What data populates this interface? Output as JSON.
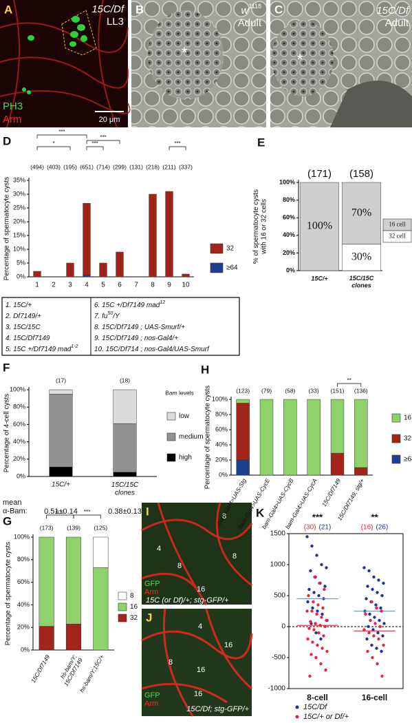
{
  "images": {
    "A": {
      "panel": "A",
      "genotype": "15C/Df",
      "stage": "LL3",
      "stain1": "PH3",
      "stain2": "Arm",
      "scale": "20 μm"
    },
    "B": {
      "panel": "B",
      "genotype": "w",
      "sup": "1118",
      "stage": "Adult",
      "mark": "*"
    },
    "C": {
      "panel": "C",
      "genotype": "15C/Df",
      "stage": "Adult",
      "mark": "*"
    },
    "I": {
      "panel": "I",
      "cells": [
        "8",
        "4",
        "8",
        "16",
        "8"
      ],
      "stain1": "GFP",
      "stain2": "Arm",
      "genotype": "15C (or Df)/+; stg-GFP/+"
    },
    "J": {
      "panel": "J",
      "cells": [
        "4",
        "16",
        "8",
        "16",
        "16"
      ],
      "stain1": "GFP",
      "stain2": "Arm",
      "genotype": "15C/Df; stg-GFP/+"
    }
  },
  "genotype_table": {
    "entries": [
      {
        "text": "1. 15C/+"
      },
      {
        "text": "2. Df7149/+"
      },
      {
        "text": "3. 15C/15C"
      },
      {
        "text": "4. 15C/Df7149"
      },
      {
        "text": "5. 15C +/Df7149 mad",
        "sup": "1-2"
      },
      {
        "text": "6. 15C +/Df7149 mad",
        "sup": "12"
      },
      {
        "text": "7. fu",
        "sup": "50",
        "tail": "/Y"
      },
      {
        "text": "8. 15C/Df7149 ; UAS-Smurf/+"
      },
      {
        "text": "9. 15C/Df7149 ; nos-Gal4/+"
      },
      {
        "text": "10. 15C/Df714 ; nos-Gal4/UAS-Smurf"
      }
    ]
  },
  "chart_data": [
    {
      "panel": "D",
      "type": "bar",
      "stacked": true,
      "ylabel": "Percentage of spermatocyte cysts",
      "categories": [
        "1",
        "2",
        "3",
        "4",
        "5",
        "6",
        "7",
        "8",
        "9",
        "10"
      ],
      "series": [
        {
          "name": "≥64",
          "color": "#1f3f8f",
          "values": [
            0,
            0,
            0,
            0.7,
            0,
            0,
            0,
            0,
            0,
            0
          ]
        },
        {
          "name": "32",
          "color": "#a3241b",
          "values": [
            2,
            0,
            5,
            26,
            5,
            9,
            0,
            30,
            31,
            1
          ]
        }
      ],
      "counts": [
        "(494)",
        "(403)",
        "(195)",
        "(651)",
        "(714)",
        "(299)",
        "(131)",
        "(218)",
        "(211)",
        "(337)"
      ],
      "ylim": [
        0,
        35
      ],
      "yticks": [
        {
          "value": 0,
          "label": "0%"
        },
        {
          "value": 5,
          "label": "5%"
        },
        {
          "value": 10,
          "label": "10%"
        },
        {
          "value": 15,
          "label": "15%"
        },
        {
          "value": 20,
          "label": "20%"
        },
        {
          "value": 25,
          "label": "25%"
        },
        {
          "value": 30,
          "label": "30%"
        },
        {
          "value": 35,
          "label": "35%"
        }
      ],
      "brackets": [
        {
          "label": "***",
          "between": [
            "1",
            "4"
          ]
        },
        {
          "label": "***",
          "between": [
            "4",
            "6"
          ]
        },
        {
          "label": "*",
          "between": [
            "1",
            "3"
          ]
        },
        {
          "label": "***",
          "between": [
            "4",
            "5"
          ]
        },
        {
          "label": "***",
          "between": [
            "9",
            "10"
          ]
        }
      ]
    },
    {
      "panel": "E",
      "type": "bar",
      "stacked": true,
      "ylabel": "% of spermatocyte cysts\nwith 16 or 32 cells",
      "categories": [
        "15C/+",
        "15C/15C\nclones"
      ],
      "series": [
        {
          "name": "32 cell",
          "color": "#ffffff",
          "values": [
            0,
            30
          ],
          "value_labels": [
            null,
            "30%"
          ]
        },
        {
          "name": "16 cell",
          "color": "#cfcfcf",
          "values": [
            100,
            70
          ],
          "value_labels": [
            "100%",
            "70%"
          ]
        }
      ],
      "counts": [
        "(171)",
        "(158)"
      ],
      "ylim": [
        0,
        100
      ],
      "yticks": [
        {
          "value": 0,
          "label": "0%"
        },
        {
          "value": 20,
          "label": "20%"
        },
        {
          "value": 40,
          "label": "40%"
        },
        {
          "value": 60,
          "label": "60%"
        },
        {
          "value": 80,
          "label": "80%"
        },
        {
          "value": 100,
          "label": "100%"
        }
      ]
    },
    {
      "panel": "F",
      "type": "bar",
      "stacked": true,
      "ylabel": "Percentage of 4-cell cysts",
      "categories": [
        "15C/+",
        "15C/15C\nclones"
      ],
      "series": [
        {
          "name": "high",
          "color": "#000000",
          "values": [
            11,
            5
          ]
        },
        {
          "name": "medium",
          "color": "#929292",
          "values": [
            84,
            56
          ]
        },
        {
          "name": "low",
          "color": "#dcdcdc",
          "values": [
            5,
            39
          ]
        }
      ],
      "legend_title": "Bam levels",
      "counts": [
        "(17)",
        "(18)"
      ],
      "mean_label": "mean\nα-Bam:",
      "means": [
        "0.51±0.14",
        "0.38±0.13"
      ],
      "ylim": [
        0,
        100
      ],
      "yticks": [
        {
          "value": 0,
          "label": "0%"
        },
        {
          "value": 20,
          "label": "20%"
        },
        {
          "value": 40,
          "label": "40%"
        },
        {
          "value": 60,
          "label": "60%"
        },
        {
          "value": 80,
          "label": "80%"
        },
        {
          "value": 100,
          "label": "100%"
        }
      ]
    },
    {
      "panel": "G",
      "type": "bar",
      "stacked": true,
      "ylabel": "Percentage of spermatocyte cysts",
      "categories": [
        "15C/Df7149",
        "hs-bam/Y;\n15C/Df7149",
        "hs-bam/Y;15C/+"
      ],
      "series": [
        {
          "name": "32",
          "color": "#a3241b",
          "values": [
            21,
            23,
            0
          ]
        },
        {
          "name": "16",
          "color": "#8fd16a",
          "values": [
            79,
            77,
            73
          ]
        },
        {
          "name": "8",
          "color": "#ffffff",
          "values": [
            0,
            0,
            27
          ]
        }
      ],
      "counts": [
        "(173)",
        "(139)",
        "(125)"
      ],
      "ylim": [
        0,
        100
      ],
      "yticks": [
        {
          "value": 0,
          "label": "0%"
        },
        {
          "value": 20,
          "label": "20%"
        },
        {
          "value": 40,
          "label": "40%"
        },
        {
          "value": 60,
          "label": "60%"
        },
        {
          "value": 80,
          "label": "80%"
        },
        {
          "value": 100,
          "label": "100%"
        }
      ],
      "brackets": [
        {
          "label": "n.s.",
          "between": [
            "15C/Df7149",
            "hs-bam/Y;\n15C/Df7149"
          ]
        },
        {
          "label": "***",
          "between": [
            "hs-bam/Y;\n15C/Df7149",
            "hs-bam/Y;15C/+"
          ]
        }
      ]
    },
    {
      "panel": "H",
      "type": "bar",
      "stacked": true,
      "ylabel": "Percentage of spermatocyte cysts",
      "categories": [
        "bam-Gal4>UAS-Stg",
        "bam-Gal4>UAS-CycE",
        "bam-Gal4>UAS-CycB",
        "bam-Gal4>UAS-CycA",
        "15C/Df7149",
        "15C/Df7149; stg/+"
      ],
      "series": [
        {
          "name": "≥64",
          "color": "#1f3f8f",
          "values": [
            20,
            0,
            0,
            0,
            0,
            0
          ]
        },
        {
          "name": "32",
          "color": "#a3241b",
          "values": [
            75,
            0,
            0,
            0,
            29,
            10
          ]
        },
        {
          "name": "16",
          "color": "#8fd16a",
          "values": [
            5,
            100,
            100,
            100,
            71,
            90
          ]
        }
      ],
      "counts": [
        "(123)",
        "(79)",
        "(58)",
        "(33)",
        "(151)",
        "(136)"
      ],
      "ylim": [
        0,
        100
      ],
      "yticks": [
        {
          "value": 0,
          "label": "0%"
        },
        {
          "value": 20,
          "label": "20%"
        },
        {
          "value": 40,
          "label": "40%"
        },
        {
          "value": 60,
          "label": "60%"
        },
        {
          "value": 80,
          "label": "80%"
        },
        {
          "value": 100,
          "label": "100%"
        }
      ],
      "brackets": [
        {
          "label": "**",
          "between": [
            "15C/Df7149",
            "15C/Df7149; stg/+"
          ]
        }
      ]
    },
    {
      "panel": "K",
      "type": "scatter",
      "categories": [
        "8-cell",
        "16-cell"
      ],
      "significance": [
        "***",
        "**"
      ],
      "series": [
        {
          "name": "15C/Df",
          "color": "#1f2fa8",
          "counts": [
            "(21)",
            "(26)"
          ],
          "means": [
            450,
            250
          ],
          "values": [
            [
              1450,
              1300,
              1150,
              1000,
              950,
              900,
              800,
              700,
              650,
              600,
              550,
              500,
              450,
              400,
              300,
              250,
              200,
              100,
              50,
              -100,
              -200
            ],
            [
              950,
              900,
              800,
              750,
              700,
              650,
              600,
              550,
              500,
              450,
              400,
              350,
              300,
              250,
              200,
              150,
              100,
              50,
              0,
              -50,
              -100,
              -150,
              -200,
              -300,
              -350,
              -400
            ]
          ]
        },
        {
          "name": "15C/+ or Df/+",
          "color": "#e8243a",
          "counts": [
            "(30)",
            "(16)"
          ],
          "means": [
            20,
            -70
          ],
          "values": [
            [
              800,
              700,
              600,
              500,
              400,
              350,
              300,
              250,
              250,
              200,
              150,
              100,
              80,
              50,
              20,
              0,
              -30,
              -50,
              -100,
              -150,
              -200,
              -250,
              -300,
              -350,
              -400,
              -450,
              -500,
              -600,
              -700,
              -800
            ],
            [
              400,
              300,
              250,
              200,
              100,
              50,
              0,
              -50,
              -100,
              -150,
              -200,
              -300,
              -400,
              -500,
              -600,
              -800
            ]
          ]
        }
      ],
      "ylim": [
        -1000,
        1500
      ],
      "yticks": [
        -1000,
        -500,
        0,
        500,
        1000,
        1500
      ]
    }
  ]
}
